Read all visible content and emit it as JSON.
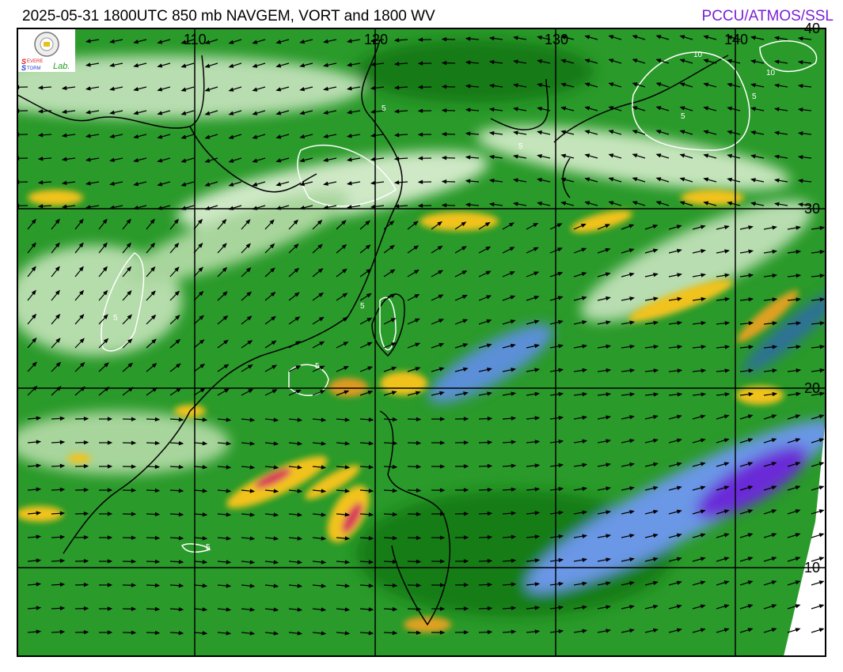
{
  "header": {
    "title": "2025-05-31 1800UTC 850 mb NAVGEM, VORT and 1800 WV",
    "credit": "PCCU/ATMOS/SSL"
  },
  "logo": {
    "text_top": "SEVERE",
    "text_bottom": "STORM",
    "text_lab": "Lab."
  },
  "map": {
    "longitude_labels": [
      "110",
      "120",
      "130",
      "140"
    ],
    "latitude_labels": [
      "40",
      "30",
      "20",
      "10"
    ],
    "vorticity_contour_labels": [
      "5",
      "5",
      "5",
      "5",
      "5",
      "5",
      "5",
      "10",
      "10",
      "5"
    ],
    "colors": {
      "wv_moist_green": "#1e8c1e",
      "wv_light": "#e8f2e0",
      "wv_yellow": "#f2c21a",
      "wv_red": "#d83a5a",
      "wv_dry_blue": "#6f9be8",
      "wv_dry_purple": "#6a2bd8",
      "contour": "#ffffff",
      "grid": "#000000"
    }
  }
}
